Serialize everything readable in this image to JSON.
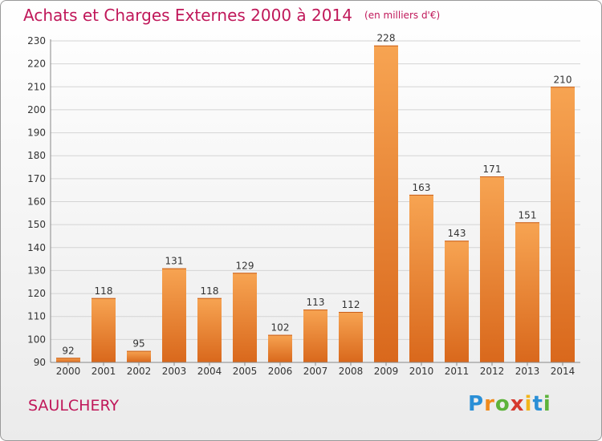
{
  "title": "Achats et Charges Externes 2000 à 2014",
  "subtitle": "(en milliers d'€)",
  "place": "SAULCHERY",
  "logo": "Proxiti",
  "colors": {
    "title": "#c0185a",
    "bar_light": "#f7a452",
    "bar_dark": "#d9681c",
    "grid": "#d4d4d4"
  },
  "chart_data": {
    "type": "bar",
    "title": "Achats et Charges Externes 2000 à 2014",
    "subtitle": "(en milliers d'€)",
    "categories": [
      "2000",
      "2001",
      "2002",
      "2003",
      "2004",
      "2005",
      "2006",
      "2007",
      "2008",
      "2009",
      "2010",
      "2011",
      "2012",
      "2013",
      "2014"
    ],
    "values": [
      92,
      118,
      95,
      131,
      118,
      129,
      102,
      113,
      112,
      228,
      163,
      143,
      171,
      151,
      210
    ],
    "ylim": [
      90,
      230
    ],
    "yticks": [
      90,
      100,
      110,
      120,
      130,
      140,
      150,
      160,
      170,
      180,
      190,
      200,
      210,
      220,
      230
    ],
    "grid": true,
    "data_labels": true
  }
}
